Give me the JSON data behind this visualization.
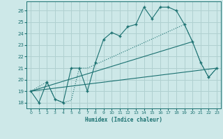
{
  "xlabel": "Humidex (Indice chaleur)",
  "background_color": "#cde8e8",
  "grid_color": "#b0d0d0",
  "line_color": "#1a7070",
  "xlim": [
    -0.5,
    23.5
  ],
  "ylim": [
    17.5,
    26.8
  ],
  "yticks": [
    18,
    19,
    20,
    21,
    22,
    23,
    24,
    25,
    26
  ],
  "xticks": [
    0,
    1,
    2,
    3,
    4,
    5,
    6,
    7,
    8,
    9,
    10,
    11,
    12,
    13,
    14,
    15,
    16,
    17,
    18,
    19,
    20,
    21,
    22,
    23
  ],
  "line1_x": [
    0,
    1,
    2,
    3,
    4,
    5,
    6,
    7,
    8,
    9,
    10,
    11,
    12,
    13,
    14,
    15,
    16,
    17,
    18,
    19,
    20,
    21,
    22,
    23
  ],
  "line1_y": [
    19.0,
    18.0,
    19.8,
    18.3,
    18.0,
    21.0,
    21.0,
    19.0,
    21.5,
    23.5,
    24.1,
    23.8,
    24.6,
    24.8,
    26.3,
    25.3,
    26.3,
    26.3,
    26.0,
    24.8,
    23.3,
    21.5,
    20.2,
    21.0
  ],
  "line2_x": [
    0,
    2,
    3,
    4,
    5,
    6,
    7,
    19,
    20,
    21,
    22,
    23
  ],
  "line2_y": [
    19.0,
    19.8,
    18.3,
    18.0,
    18.2,
    21.0,
    21.0,
    24.8,
    23.3,
    21.5,
    20.2,
    21.0
  ],
  "line3_x": [
    0,
    20
  ],
  "line3_y": [
    19.0,
    23.3
  ],
  "line4_x": [
    0,
    23
  ],
  "line4_y": [
    19.0,
    21.0
  ]
}
